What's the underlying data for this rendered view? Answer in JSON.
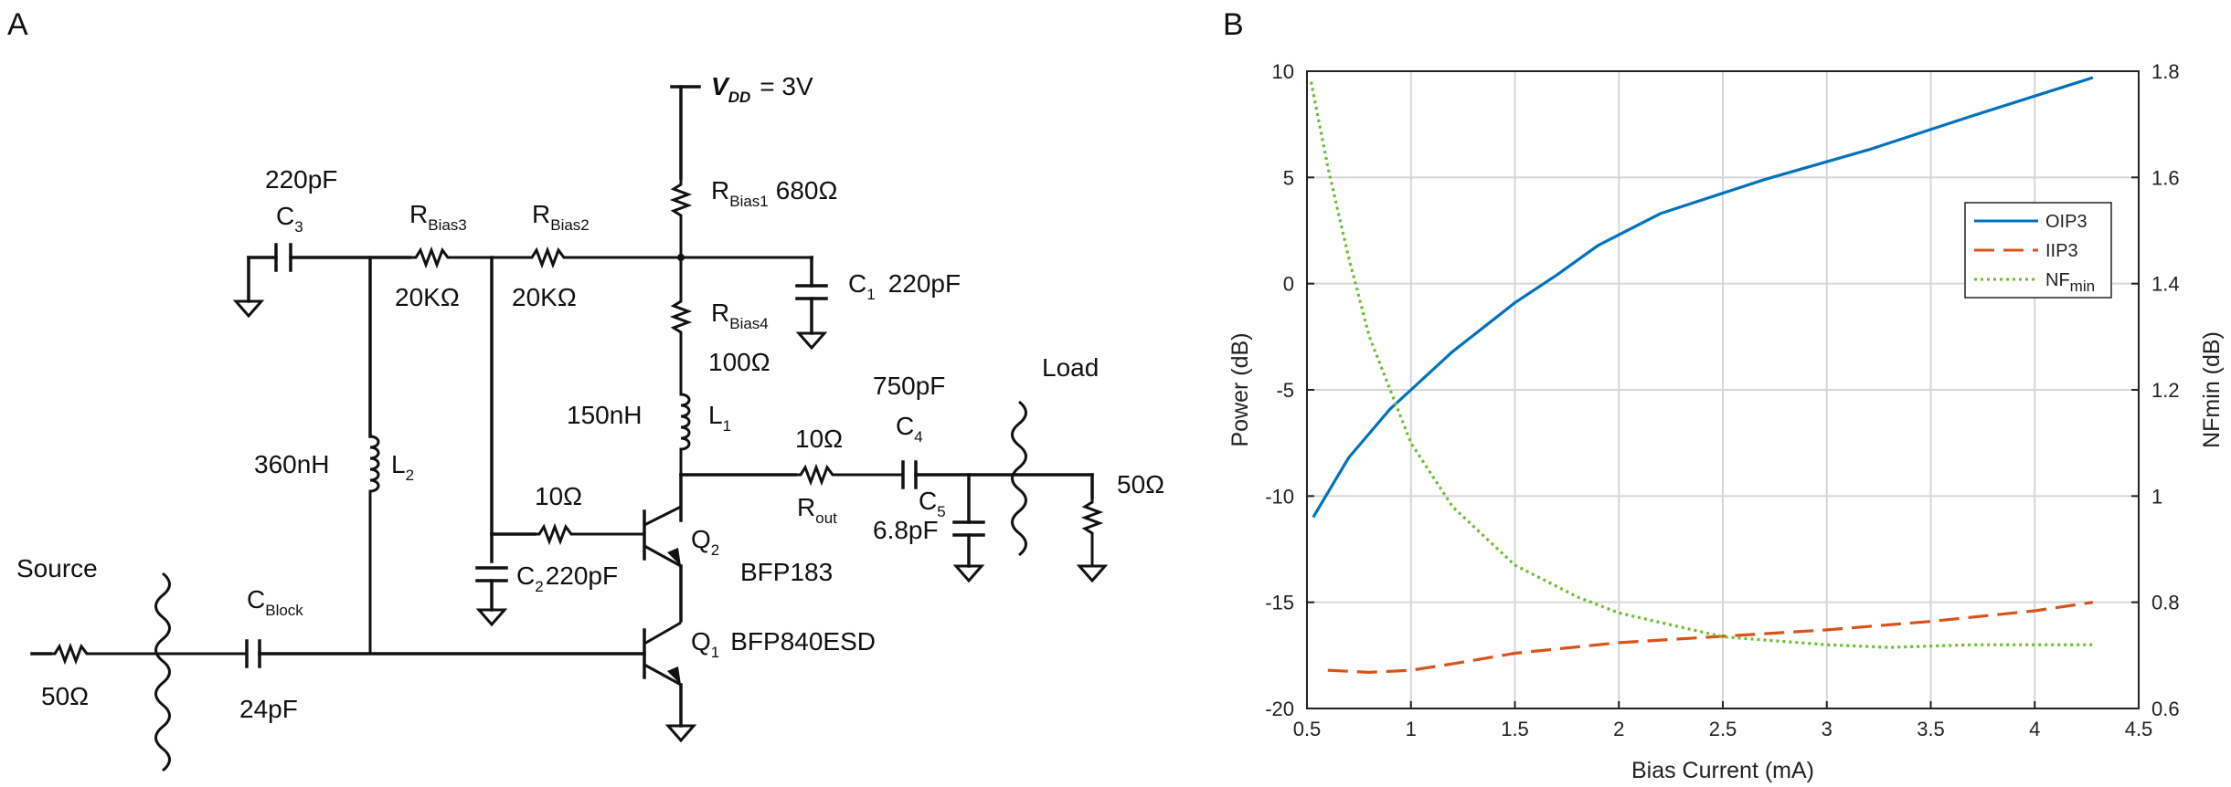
{
  "panels": {
    "a": "A",
    "b": "B"
  },
  "schematic": {
    "vdd": {
      "sym": "V",
      "sub": "DD",
      "value": "= 3V"
    },
    "c3": {
      "value": "220pF",
      "sym": "C",
      "sub": "3"
    },
    "rbias3": {
      "sym": "R",
      "sub": "Bias3",
      "value": "20KΩ"
    },
    "rbias2": {
      "sym": "R",
      "sub": "Bias2",
      "value": "20KΩ"
    },
    "rbias1": {
      "sym": "R",
      "sub": "Bias1",
      "value": "680Ω"
    },
    "c1": {
      "sym": "C",
      "sub": "1",
      "value": "220pF"
    },
    "rbias4": {
      "sym": "R",
      "sub": "Bias4",
      "value": "100Ω"
    },
    "l1": {
      "value": "150nH",
      "sym": "L",
      "sub": "1"
    },
    "l2": {
      "value": "360nH",
      "sym": "L",
      "sub": "2"
    },
    "c4": {
      "value": "750pF",
      "sym": "C",
      "sub": "4"
    },
    "rout": {
      "value": "10Ω",
      "sym": "R",
      "sub": "out"
    },
    "c5": {
      "sym": "C",
      "sub": "5",
      "value": "6.8pF"
    },
    "load": {
      "label": "Load",
      "value": "50Ω"
    },
    "rbase": {
      "value": "10Ω"
    },
    "c2": {
      "sym": "C",
      "sub": "2",
      "value": "220pF"
    },
    "q2": {
      "sym": "Q",
      "sub": "2",
      "part": "BFP183"
    },
    "q1": {
      "sym": "Q",
      "sub": "1",
      "part": "BFP840ESD"
    },
    "source": {
      "label": "Source",
      "value": "50Ω"
    },
    "cblock": {
      "sym": "C",
      "sub": "Block",
      "value": "24pF"
    }
  },
  "chart_data": {
    "type": "line",
    "xlabel": "Bias Current (mA)",
    "ylabel": "Power (dB)",
    "y2label": "NFmin (dB)",
    "xlim": [
      0.5,
      4.5
    ],
    "ylim": [
      -20,
      10
    ],
    "y2lim": [
      0.6,
      1.8
    ],
    "xticks": [
      0.5,
      1,
      1.5,
      2,
      2.5,
      3,
      3.5,
      4,
      4.5
    ],
    "xtick_labels": [
      "0.5",
      "1",
      "1.5",
      "2",
      "2.5",
      "3",
      "3.5",
      "4",
      "4.5"
    ],
    "yticks": [
      10,
      5,
      0,
      -5,
      -10,
      -15,
      -20
    ],
    "ytick_labels": [
      "10",
      "5",
      "0",
      "-5",
      "-10",
      "-15",
      "-20"
    ],
    "y2ticks": [
      1.8,
      1.6,
      1.4,
      1.2,
      1.0,
      0.8,
      0.6
    ],
    "y2tick_labels": [
      "1.8",
      "1.6",
      "1.4",
      "1.2",
      "1",
      "0.8",
      "0.6"
    ],
    "grid": true,
    "legend_position": "right-middle",
    "legend_entries": [
      {
        "name": "OIP3",
        "sub": ""
      },
      {
        "name": "IIP3",
        "sub": ""
      },
      {
        "name": "NF",
        "sub": "min"
      }
    ],
    "series": [
      {
        "name": "OIP3",
        "axis": "left",
        "color": "#0072BD",
        "style": "solid",
        "x": [
          0.53,
          0.7,
          0.9,
          1.0,
          1.2,
          1.5,
          1.7,
          1.9,
          2.2,
          2.7,
          3.2,
          3.7,
          4.28
        ],
        "y": [
          -11,
          -8.2,
          -5.9,
          -5.0,
          -3.2,
          -0.9,
          0.4,
          1.8,
          3.3,
          4.9,
          6.3,
          7.9,
          9.7
        ]
      },
      {
        "name": "IIP3",
        "axis": "left",
        "color": "#D95319",
        "style": "dashed",
        "x": [
          0.6,
          0.8,
          1.0,
          1.2,
          1.5,
          2.0,
          2.5,
          3.0,
          3.5,
          4.0,
          4.28
        ],
        "y": [
          -18.2,
          -18.3,
          -18.2,
          -17.9,
          -17.4,
          -16.9,
          -16.6,
          -16.3,
          -15.9,
          -15.4,
          -15.0
        ]
      },
      {
        "name": "NFmin",
        "axis": "right",
        "color": "#6ABE2E",
        "style": "dotted",
        "x": [
          0.52,
          0.6,
          0.7,
          0.8,
          1.0,
          1.2,
          1.5,
          1.8,
          2.0,
          2.5,
          3.0,
          3.3,
          3.7,
          4.0,
          4.28
        ],
        "y": [
          1.78,
          1.62,
          1.45,
          1.3,
          1.1,
          0.98,
          0.87,
          0.81,
          0.78,
          0.735,
          0.72,
          0.715,
          0.72,
          0.72,
          0.72
        ]
      }
    ]
  }
}
